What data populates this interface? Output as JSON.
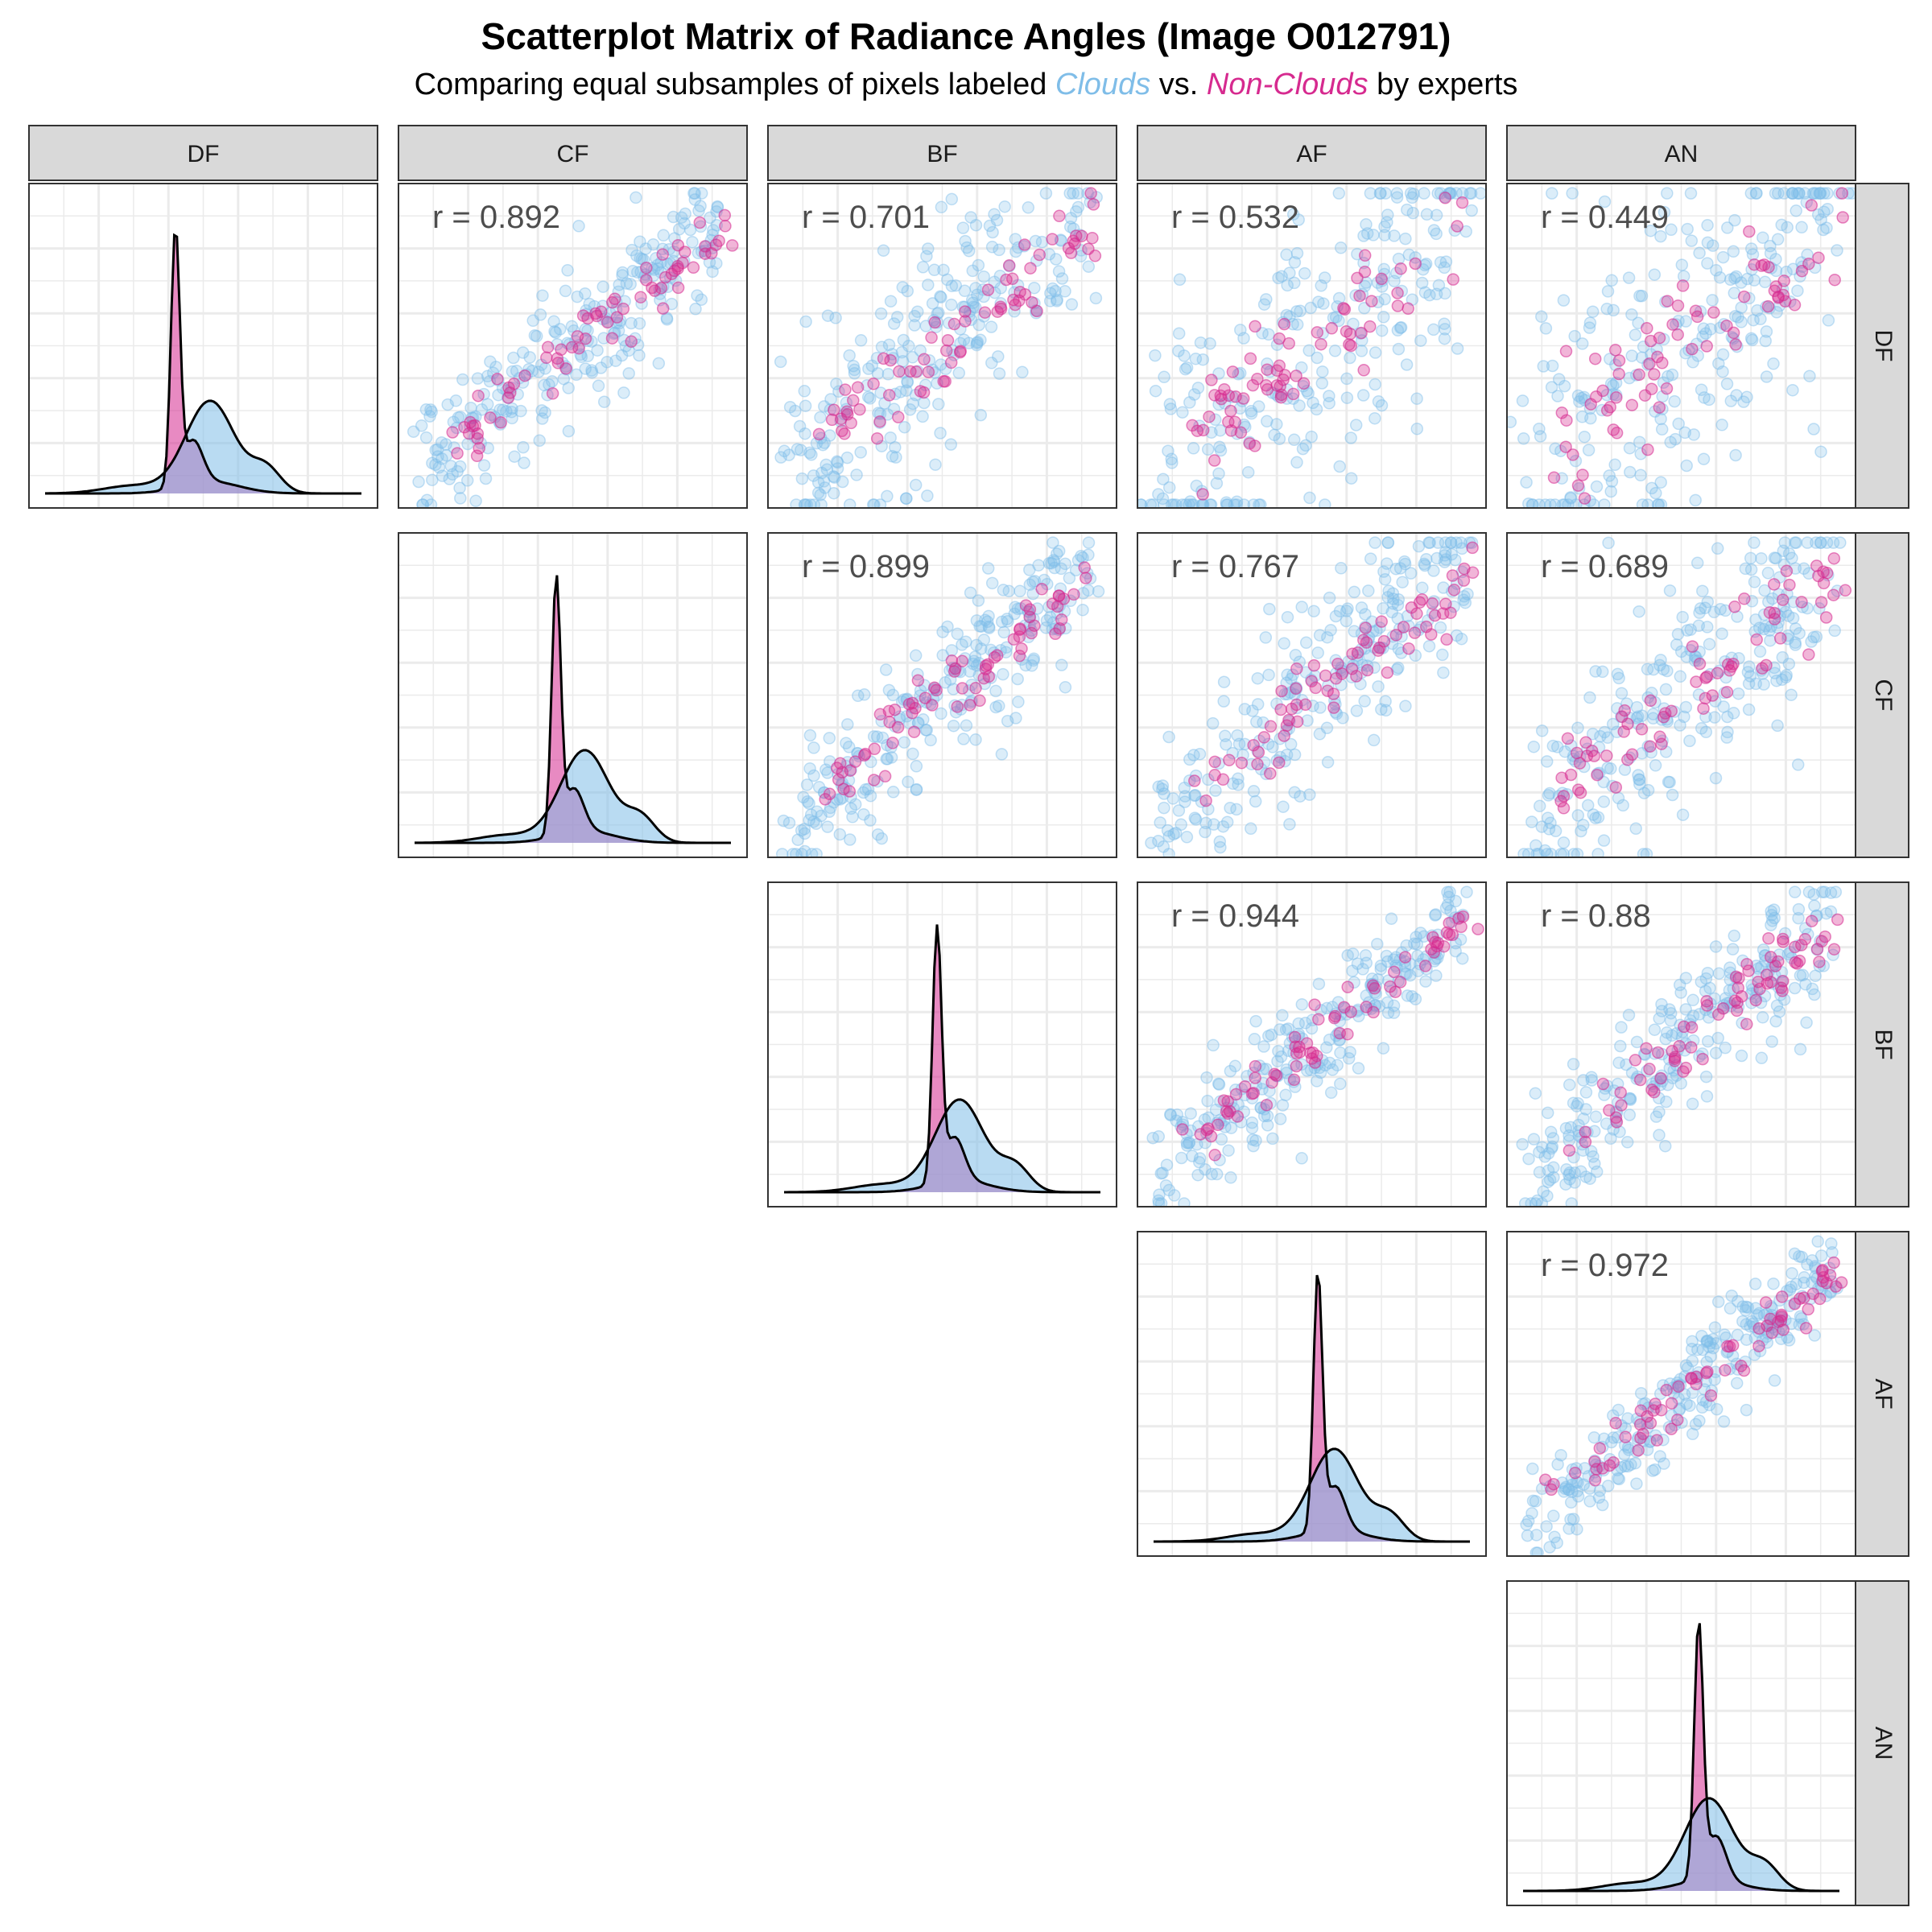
{
  "title": "Scatterplot Matrix of Radiance Angles (Image O012791)",
  "subtitle": {
    "prefix": "Comparing equal subsamples of pixels labeled",
    "clouds": "Clouds",
    "vs": "vs.",
    "noncl": "Non-Clouds",
    "suffix": "by experts"
  },
  "colors": {
    "clouds": "#7fbde8",
    "non_clouds": "#d62a8f",
    "overlap": "#a99ad6",
    "strip_bg": "#d9d9d9",
    "grid": "#ebebeb",
    "panel_border": "#333333"
  },
  "chart_data": {
    "type": "scatter",
    "layout": "upper-triangular scatterplot matrix",
    "variables": [
      "DF",
      "CF",
      "BF",
      "AF",
      "AN"
    ],
    "groups": [
      "Clouds",
      "Non-Clouds"
    ],
    "correlations": [
      {
        "row": "DF",
        "col": "CF",
        "label": "r = 0.892"
      },
      {
        "row": "DF",
        "col": "BF",
        "label": "r = 0.701"
      },
      {
        "row": "DF",
        "col": "AF",
        "label": "r = 0.532"
      },
      {
        "row": "DF",
        "col": "AN",
        "label": "r = 0.449"
      },
      {
        "row": "CF",
        "col": "BF",
        "label": "r = 0.899"
      },
      {
        "row": "CF",
        "col": "AF",
        "label": "r = 0.767"
      },
      {
        "row": "CF",
        "col": "AN",
        "label": "r = 0.689"
      },
      {
        "row": "BF",
        "col": "AF",
        "label": "r = 0.944"
      },
      {
        "row": "BF",
        "col": "AN",
        "label": "r = 0.88"
      },
      {
        "row": "AF",
        "col": "AN",
        "label": "r = 0.972"
      }
    ],
    "diagonal": "overlaid density curves per group",
    "grid": true,
    "axis_tick_labels": false
  }
}
